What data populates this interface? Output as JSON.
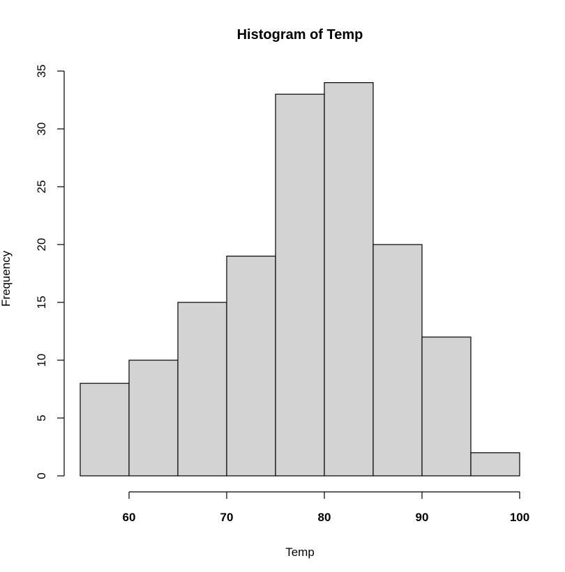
{
  "chart_data": {
    "type": "bar",
    "title": "Histogram of Temp",
    "xlabel": "Temp",
    "ylabel": "Frequency",
    "bins": [
      {
        "start": 55,
        "end": 60,
        "count": 8
      },
      {
        "start": 60,
        "end": 65,
        "count": 10
      },
      {
        "start": 65,
        "end": 70,
        "count": 15
      },
      {
        "start": 70,
        "end": 75,
        "count": 19
      },
      {
        "start": 75,
        "end": 80,
        "count": 33
      },
      {
        "start": 80,
        "end": 85,
        "count": 34
      },
      {
        "start": 85,
        "end": 90,
        "count": 20
      },
      {
        "start": 90,
        "end": 95,
        "count": 12
      },
      {
        "start": 95,
        "end": 100,
        "count": 2
      }
    ],
    "x_ticks": [
      "60",
      "70",
      "80",
      "90",
      "100"
    ],
    "y_ticks": [
      "0",
      "5",
      "10",
      "15",
      "20",
      "25",
      "30",
      "35"
    ],
    "xlim": [
      55,
      100
    ],
    "ylim": [
      0,
      35
    ],
    "bar_color": "#d3d3d3",
    "grid": false,
    "legend": false
  }
}
